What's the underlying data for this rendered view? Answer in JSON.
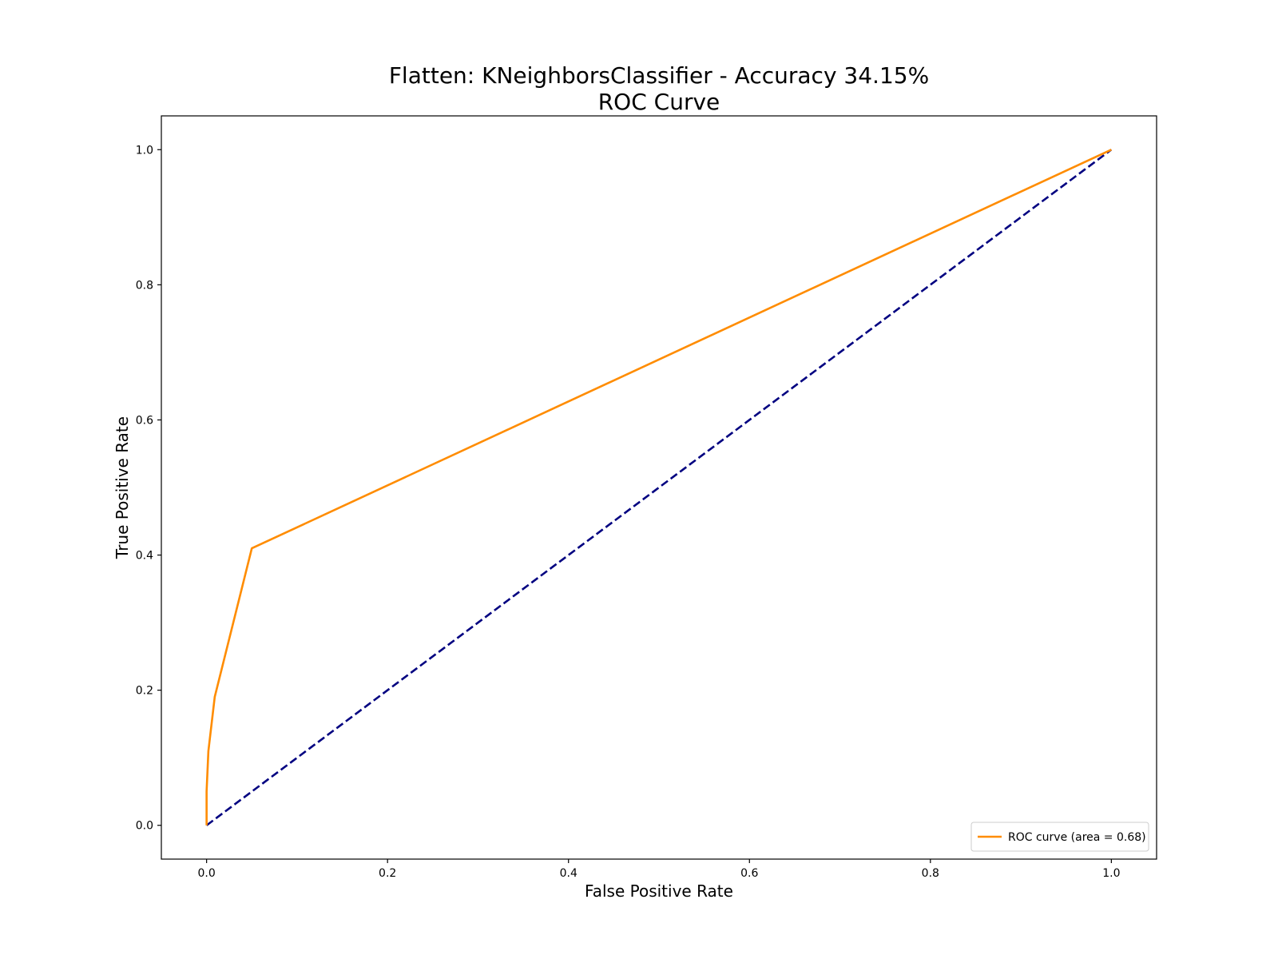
{
  "chart_data": {
    "type": "line",
    "title_lines": [
      "Flatten: KNeighborsClassifier - Accuracy 34.15%",
      "ROC Curve"
    ],
    "xlabel": "False Positive Rate",
    "ylabel": "True Positive Rate",
    "xlim": [
      -0.05,
      1.05
    ],
    "ylim": [
      -0.05,
      1.05
    ],
    "x_ticks": [
      0.0,
      0.2,
      0.4,
      0.6,
      0.8,
      1.0
    ],
    "x_tick_labels": [
      "0.0",
      "0.2",
      "0.4",
      "0.6",
      "0.8",
      "1.0"
    ],
    "y_ticks": [
      0.0,
      0.2,
      0.4,
      0.6,
      0.8,
      1.0
    ],
    "y_tick_labels": [
      "0.0",
      "0.2",
      "0.4",
      "0.6",
      "0.8",
      "1.0"
    ],
    "grid": false,
    "legend_position": "lower-right",
    "series": [
      {
        "name": "ROC curve (area = 0.68)",
        "color": "#ff8c00",
        "style": "solid",
        "x": [
          0.0,
          0.0,
          0.0,
          0.002,
          0.009,
          0.05,
          1.0
        ],
        "y": [
          0.0,
          0.02,
          0.05,
          0.11,
          0.19,
          0.41,
          1.0
        ]
      },
      {
        "name": "",
        "color": "#000080",
        "style": "dashed",
        "x": [
          0.0,
          1.0
        ],
        "y": [
          0.0,
          1.0
        ]
      }
    ]
  }
}
